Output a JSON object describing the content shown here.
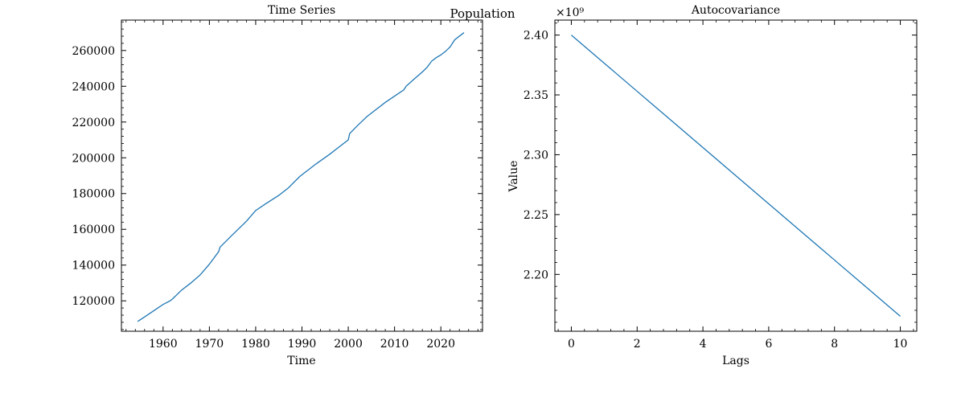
{
  "figure": {
    "suptitle": "Population",
    "line_color": "#1f77b4"
  },
  "chart_data": [
    {
      "type": "line",
      "title": "Time Series",
      "xlabel": "Time",
      "ylabel": "",
      "xlim": [
        1951,
        2029
      ],
      "ylim": [
        103000,
        277000
      ],
      "xticks": [
        1960,
        1970,
        1980,
        1990,
        2000,
        2010,
        2020
      ],
      "xtick_labels": [
        "1960",
        "1970",
        "1980",
        "1990",
        "2000",
        "2010",
        "2020"
      ],
      "yticks": [
        120000,
        140000,
        160000,
        180000,
        200000,
        220000,
        240000,
        260000
      ],
      "ytick_labels": [
        "120000",
        "140000",
        "160000",
        "180000",
        "200000",
        "220000",
        "240000",
        "260000"
      ],
      "grid": false,
      "series": [
        {
          "x": [
            1954.5,
            1956,
            1958,
            1960,
            1961.5,
            1962,
            1964,
            1966,
            1968,
            1970,
            1972,
            1972.3,
            1975,
            1978,
            1980,
            1982,
            1985,
            1987,
            1989.5,
            1990,
            1993,
            1996,
            1998,
            2000,
            2000.3,
            2002,
            2003,
            2004,
            2006,
            2008,
            2010,
            2012,
            2012.5,
            2014,
            2016,
            2017,
            2018,
            2019,
            2020,
            2021,
            2022,
            2023,
            2025
          ],
          "y": [
            108500,
            111000,
            114500,
            118000,
            120000,
            121000,
            126000,
            130000,
            134500,
            140500,
            147500,
            150000,
            157000,
            164500,
            170500,
            174000,
            179000,
            183000,
            189500,
            190500,
            196500,
            202000,
            206000,
            210000,
            213500,
            218000,
            220500,
            223000,
            227000,
            231000,
            234500,
            238000,
            240000,
            243500,
            248000,
            250500,
            254000,
            256000,
            257500,
            259500,
            262000,
            266000,
            270000
          ]
        }
      ]
    },
    {
      "type": "line",
      "title": "Autocovariance",
      "xlabel": "Lags",
      "ylabel": "Value",
      "offset_label": "×10⁹",
      "xlim": [
        -0.5,
        10.5
      ],
      "ylim": [
        2.1525,
        2.4125
      ],
      "xticks": [
        0,
        2,
        4,
        6,
        8,
        10
      ],
      "xtick_labels": [
        "0",
        "2",
        "4",
        "6",
        "8",
        "10"
      ],
      "yticks": [
        2.2,
        2.25,
        2.3,
        2.35,
        2.4
      ],
      "ytick_labels": [
        "2.20",
        "2.25",
        "2.30",
        "2.35",
        "2.40"
      ],
      "grid": false,
      "series": [
        {
          "x": [
            0,
            1,
            2,
            3,
            4,
            5,
            6,
            7,
            8,
            9,
            10
          ],
          "y": [
            2.4,
            2.3765,
            2.353,
            2.3295,
            2.306,
            2.2825,
            2.259,
            2.2355,
            2.212,
            2.1885,
            2.165
          ]
        }
      ]
    }
  ]
}
